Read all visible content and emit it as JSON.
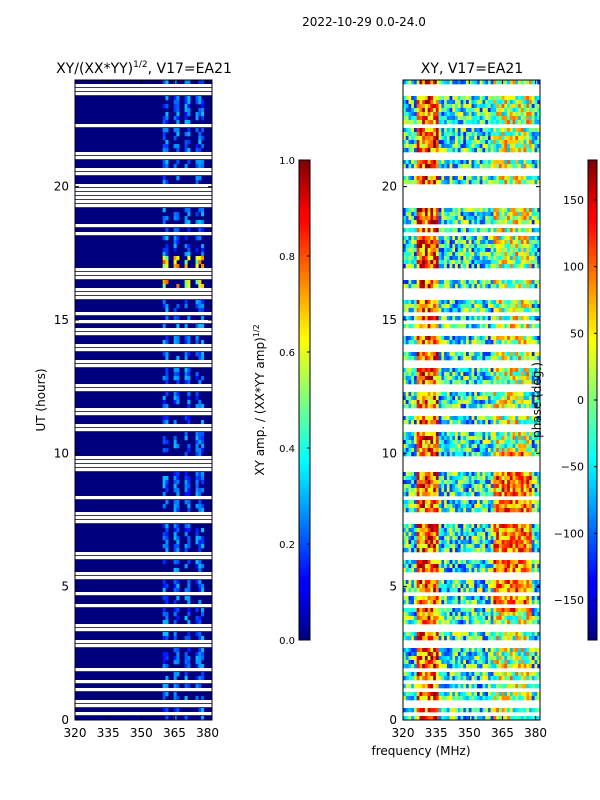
{
  "suptitle": "2022-10-29 0.0-24.0",
  "shared": {
    "xlabel": "frequency (MHz)",
    "ylabel": "UT (hours)",
    "x_ticks": [
      "320",
      "335",
      "350",
      "365",
      "380"
    ],
    "y_ticks": [
      "0",
      "5",
      "10",
      "15",
      "20"
    ]
  },
  "chart_data": [
    {
      "type": "heatmap",
      "title_main": "XY/(XX*YY)",
      "title_sup": "1/2",
      "title_tail": ", V17=EA21",
      "x": [
        320,
        335,
        350,
        365,
        380
      ],
      "xlim": [
        320,
        382
      ],
      "ylim": [
        0,
        24
      ],
      "colorbar": {
        "label_main": "XY amp. / (XX*YY amp)",
        "label_sup": "1/2",
        "range": [
          0.0,
          1.0
        ],
        "ticks": [
          "0.0",
          "0.2",
          "0.4",
          "0.6",
          "0.8",
          "1.0"
        ],
        "tick_values": [
          0.0,
          0.2,
          0.4,
          0.6,
          0.8,
          1.0
        ]
      }
    },
    {
      "type": "heatmap",
      "title_main": "XY, V17=EA21",
      "title_sup": "",
      "title_tail": "",
      "x": [
        320,
        335,
        350,
        365,
        380
      ],
      "xlim": [
        320,
        382
      ],
      "ylim": [
        0,
        24
      ],
      "colorbar": {
        "label_main": "phase (deg.)",
        "label_sup": "",
        "range": [
          -180,
          180
        ],
        "ticks": [
          "−150",
          "−100",
          "−50",
          "0",
          "50",
          "100",
          "150"
        ],
        "tick_values": [
          -150,
          -100,
          -50,
          0,
          50,
          100,
          150
        ]
      }
    }
  ]
}
